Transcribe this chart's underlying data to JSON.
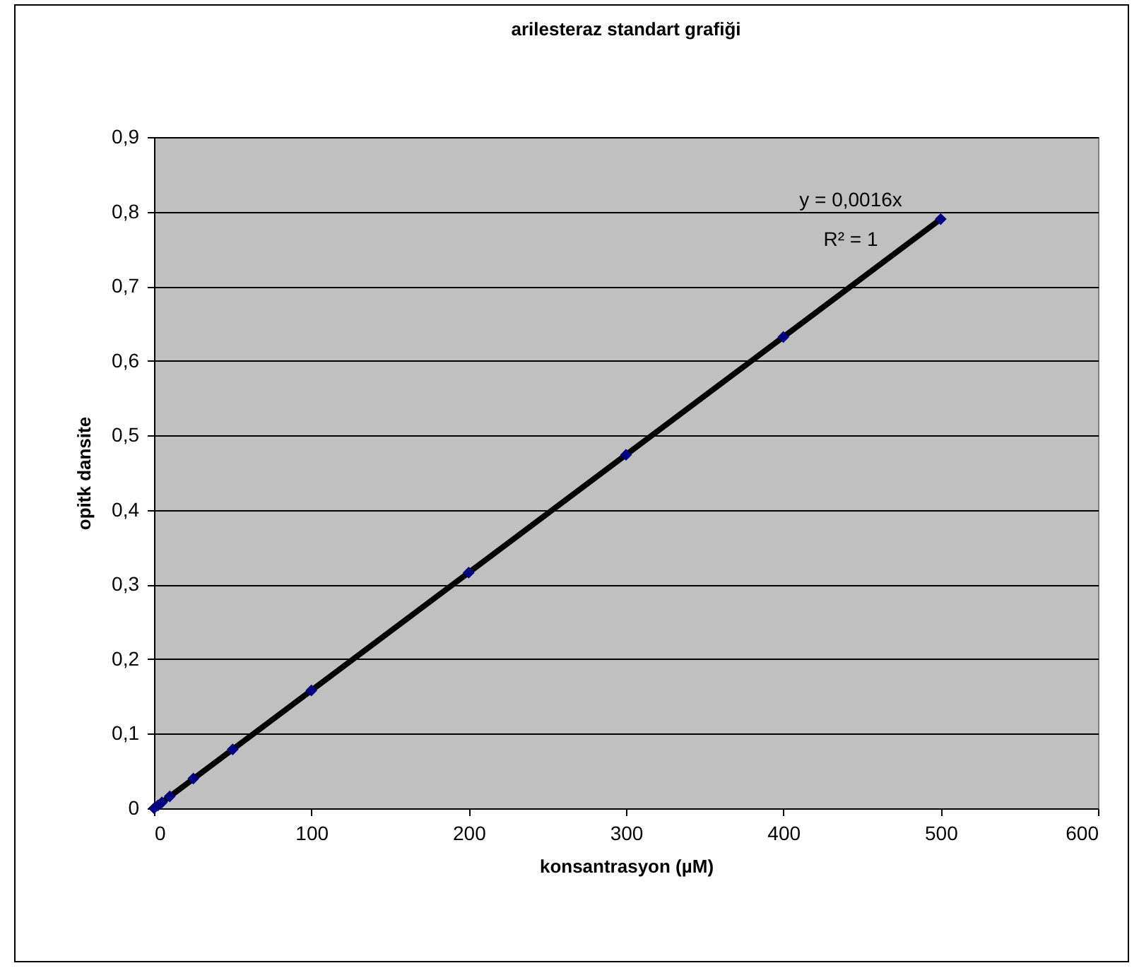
{
  "chart_data": {
    "type": "scatter",
    "title": "arilesteraz standart grafiği",
    "xlabel": "konsantrasyon (µM)",
    "ylabel": "opitk dansite",
    "x": [
      0,
      2.5,
      5,
      10,
      25,
      50,
      100,
      200,
      300,
      400,
      500
    ],
    "series": [
      {
        "type": "scatter",
        "color": "#000080",
        "marker": "diamond",
        "values": [
          0,
          0.004,
          0.008,
          0.016,
          0.04,
          0.079,
          0.158,
          0.316,
          0.474,
          0.632,
          0.79
        ]
      },
      {
        "type": "line",
        "color": "#000000",
        "x": [
          0,
          500
        ],
        "values": [
          0,
          0.79
        ]
      }
    ],
    "xlim": [
      0,
      600
    ],
    "xticks": [
      0,
      100,
      200,
      300,
      400,
      500,
      600
    ],
    "ylim": [
      0,
      0.9
    ],
    "yticks": [
      0,
      {
        "value": 0.1,
        "label": "0,1"
      },
      {
        "value": 0.2,
        "label": "0,2"
      },
      {
        "value": 0.3,
        "label": "0,3"
      },
      {
        "value": 0.4,
        "label": "0,4"
      },
      {
        "value": 0.5,
        "label": "0,5"
      },
      {
        "value": 0.6,
        "label": "0,6"
      },
      {
        "value": 0.7,
        "label": "0,7"
      },
      {
        "value": 0.8,
        "label": "0,8"
      },
      {
        "value": 0.9,
        "label": "0,9"
      }
    ],
    "grid": "y",
    "annotations": [
      "y = 0,0016x",
      "R² = 1"
    ]
  }
}
